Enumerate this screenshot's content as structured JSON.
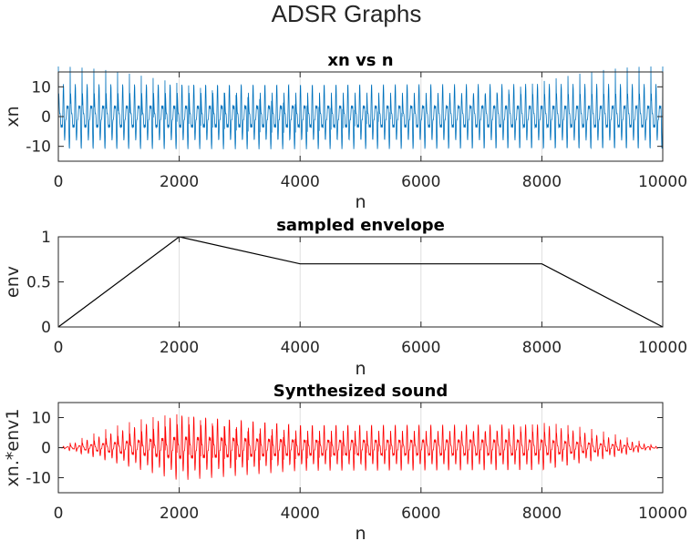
{
  "figure_title": "ADSR Graphs",
  "colors": {
    "signal": "#0072BD",
    "envelope": "#000000",
    "synth": "#FF0000",
    "axes": "#262626",
    "grid": "#DFDFDF"
  },
  "chart_data": [
    {
      "type": "line",
      "title": "xn vs n",
      "xlabel": "n",
      "ylabel": "xn",
      "xlim": [
        0,
        10000
      ],
      "ylim": [
        -15,
        15
      ],
      "xticks": [
        0,
        2000,
        4000,
        6000,
        8000,
        10000
      ],
      "yticks": [
        -10,
        0,
        10
      ],
      "xtick_labels": [
        "0",
        "2000",
        "4000",
        "6000",
        "8000",
        "10000"
      ],
      "ytick_labels": [
        "-10",
        "0",
        "10"
      ],
      "grid": "x-major",
      "series": [
        {
          "color": "#0072BD",
          "description": "periodic waveform, approx 51 cycles over n=0..10000, peak amplitude about 13.5",
          "cycles": 51,
          "peak": 13.5
        }
      ]
    },
    {
      "type": "line",
      "title": "sampled envelope",
      "xlabel": "n",
      "ylabel": "env",
      "xlim": [
        0,
        10000
      ],
      "ylim": [
        0,
        1
      ],
      "xticks": [
        0,
        2000,
        4000,
        6000,
        8000,
        10000
      ],
      "yticks": [
        0,
        0.5,
        1
      ],
      "xtick_labels": [
        "0",
        "2000",
        "4000",
        "6000",
        "8000",
        "10000"
      ],
      "ytick_labels": [
        "0",
        "0.5",
        "1"
      ],
      "grid": "x-major",
      "series": [
        {
          "color": "#000000",
          "x": [
            0,
            2000,
            4000,
            8000,
            10000
          ],
          "y": [
            0,
            1,
            0.7,
            0.7,
            0
          ]
        }
      ]
    },
    {
      "type": "line",
      "title": "Synthesized sound",
      "xlabel": "n",
      "ylabel": "xn.*env1",
      "xlim": [
        0,
        10000
      ],
      "ylim": [
        -15,
        15
      ],
      "xticks": [
        0,
        2000,
        4000,
        6000,
        8000,
        10000
      ],
      "yticks": [
        -10,
        0,
        10
      ],
      "xtick_labels": [
        "0",
        "2000",
        "4000",
        "6000",
        "8000",
        "10000"
      ],
      "ytick_labels": [
        "-10",
        "0",
        "10"
      ],
      "grid": "x-major",
      "series": [
        {
          "color": "#FF0000",
          "description": "xn multiplied by the envelope",
          "cycles": 51,
          "peak": 13.5
        }
      ]
    }
  ]
}
